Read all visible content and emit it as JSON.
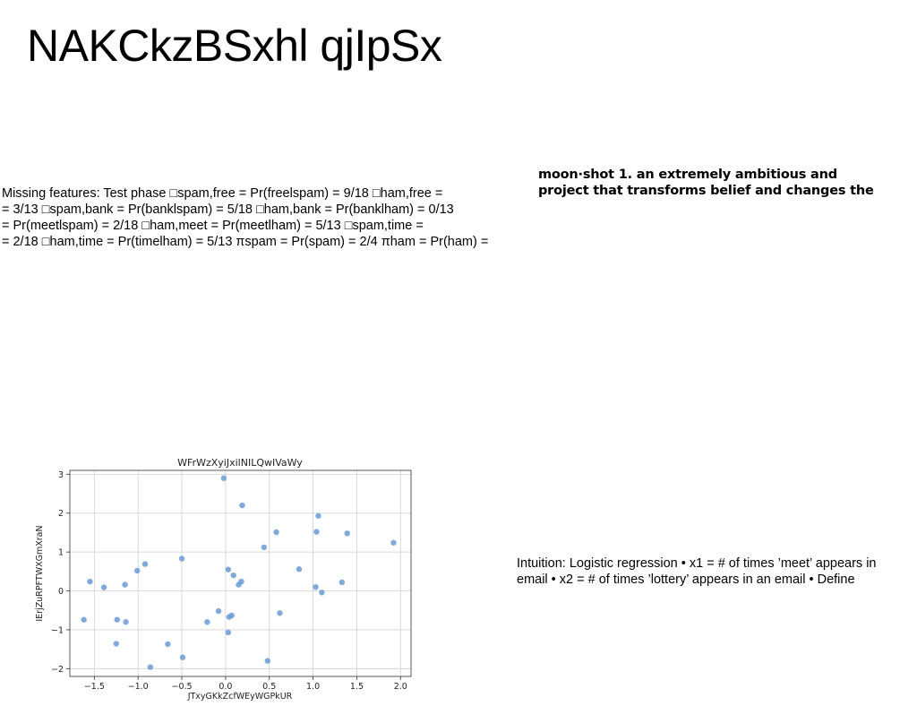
{
  "slide": {
    "title": "NAKCkzBSxhl qjIpSx",
    "body_lines": [
      "Missing features: Test phase □spam,free = Pr(freelspam) = 9/18 □ham,free =",
      "= 3/13 □spam,bank = Pr(banklspam) = 5/18 □ham,bank = Pr(banklham) = 0/13",
      "= Pr(meetlspam) = 2/18 □ham,meet = Pr(meetlham) = 5/13 □spam,time =",
      "= 2/18 □ham,time = Pr(timelham) = 5/13 πspam = Pr(spam) = 2/4 πham = Pr(ham) ="
    ],
    "side_lines": [
      "moon·shot 1. an extremely ambitious and",
      "project that transforms belief and changes the"
    ],
    "note_lines": [
      "Intuition: Logistic regression • x1 = # of times ’meet’ appears in",
      "email • x2 = # of times ’lottery’ appears in an email • Define"
    ]
  },
  "chart_data": {
    "type": "scatter",
    "title": "WFrWzXyiJxilNILQwIVaWy",
    "xlabel": "JTxyGKkZcfWEyWGPkUR",
    "ylabel": "IErjZuRPFTWXGmXraN",
    "xlim": [
      -1.78,
      2.12
    ],
    "ylim": [
      -2.2,
      3.1
    ],
    "xticks": [
      "−1.5",
      "−1.0",
      "−0.5",
      "0.0",
      "0.5",
      "1.0",
      "1.5",
      "2.0"
    ],
    "xtick_values": [
      -1.5,
      -1.0,
      -0.5,
      0.0,
      0.5,
      1.0,
      1.5,
      2.0
    ],
    "yticks": [
      "−2",
      "−1",
      "0",
      "1",
      "2",
      "3"
    ],
    "ytick_values": [
      -2,
      -1,
      0,
      1,
      2,
      3
    ],
    "grid": true,
    "point_color": "#6a9ad6",
    "points": [
      {
        "x": -0.02,
        "y": 2.9
      },
      {
        "x": 0.19,
        "y": 2.2
      },
      {
        "x": 1.06,
        "y": 1.93
      },
      {
        "x": 0.58,
        "y": 1.51
      },
      {
        "x": 1.04,
        "y": 1.52
      },
      {
        "x": 1.39,
        "y": 1.48
      },
      {
        "x": 1.92,
        "y": 1.24
      },
      {
        "x": 0.44,
        "y": 1.12
      },
      {
        "x": -0.5,
        "y": 0.83
      },
      {
        "x": -0.92,
        "y": 0.69
      },
      {
        "x": -1.01,
        "y": 0.52
      },
      {
        "x": 0.03,
        "y": 0.55
      },
      {
        "x": 0.84,
        "y": 0.56
      },
      {
        "x": 0.09,
        "y": 0.4
      },
      {
        "x": -1.55,
        "y": 0.24
      },
      {
        "x": 0.18,
        "y": 0.24
      },
      {
        "x": 1.33,
        "y": 0.22
      },
      {
        "x": -1.15,
        "y": 0.16
      },
      {
        "x": 0.15,
        "y": 0.16
      },
      {
        "x": -1.39,
        "y": 0.09
      },
      {
        "x": 1.03,
        "y": 0.1
      },
      {
        "x": 1.1,
        "y": -0.04
      },
      {
        "x": -0.08,
        "y": -0.52
      },
      {
        "x": 0.62,
        "y": -0.57
      },
      {
        "x": 0.07,
        "y": -0.63
      },
      {
        "x": 0.04,
        "y": -0.67
      },
      {
        "x": -1.62,
        "y": -0.74
      },
      {
        "x": -1.24,
        "y": -0.74
      },
      {
        "x": -1.14,
        "y": -0.8
      },
      {
        "x": -0.21,
        "y": -0.8
      },
      {
        "x": 0.03,
        "y": -1.07
      },
      {
        "x": -1.25,
        "y": -1.36
      },
      {
        "x": -0.66,
        "y": -1.37
      },
      {
        "x": -0.49,
        "y": -1.71
      },
      {
        "x": 0.48,
        "y": -1.8
      },
      {
        "x": -0.86,
        "y": -1.96
      }
    ]
  }
}
